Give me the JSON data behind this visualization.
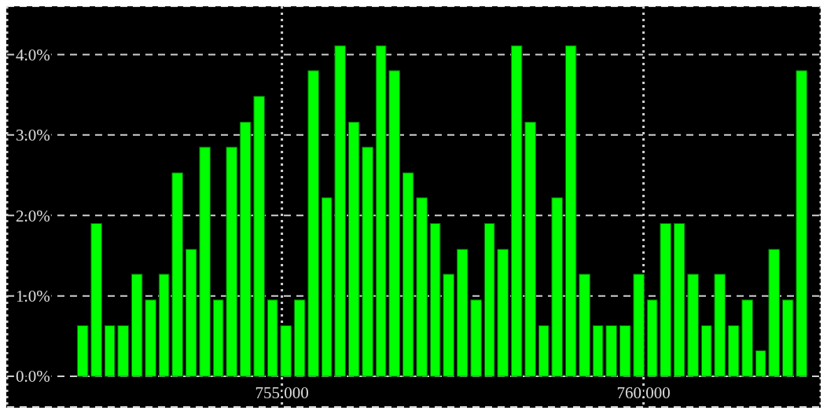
{
  "chart_data": {
    "type": "histogram",
    "bins": [
      752.15,
      752.34,
      752.53,
      752.71,
      752.9,
      753.09,
      753.28,
      753.46,
      753.65,
      753.84,
      754.03,
      754.21,
      754.4,
      754.59,
      754.78,
      754.96,
      755.15,
      755.34,
      755.53,
      755.71,
      755.9,
      756.09,
      756.28,
      756.46,
      756.65,
      756.84,
      757.03,
      757.21,
      757.4,
      757.59,
      757.78,
      757.96,
      758.15,
      758.34,
      758.53,
      758.71,
      758.9,
      759.09,
      759.28,
      759.46,
      759.65,
      759.84,
      760.03,
      760.21,
      760.4,
      760.59,
      760.78,
      760.96,
      761.15,
      761.34,
      761.53,
      761.71,
      761.9,
      762.09,
      762.28
    ],
    "values": [
      0.63,
      1.9,
      0.63,
      0.63,
      1.27,
      0.95,
      1.27,
      2.53,
      1.58,
      2.85,
      0.95,
      2.85,
      3.16,
      3.48,
      0.95,
      0.63,
      0.95,
      3.8,
      2.22,
      4.11,
      3.16,
      2.85,
      4.11,
      3.8,
      2.53,
      2.22,
      1.9,
      1.27,
      1.58,
      0.95,
      1.9,
      1.58,
      4.11,
      3.16,
      0.63,
      2.22,
      4.11,
      1.27,
      0.63,
      0.63,
      0.63,
      1.27,
      0.95,
      1.9,
      1.9,
      1.27,
      0.63,
      1.27,
      0.63,
      0.95,
      0.32,
      1.58,
      0.95,
      3.8
    ],
    "color": "#00ff00",
    "xlim": [
      751.2,
      762.45
    ],
    "xticks": [
      {
        "value": 755,
        "label": "755.000"
      },
      {
        "value": 760,
        "label": "760.000"
      }
    ],
    "ylim": [
      -0.38,
      4.6
    ],
    "yticks": [
      {
        "value": 0,
        "label": "0.0%"
      },
      {
        "value": 1,
        "label": "1.0%"
      },
      {
        "value": 2,
        "label": "2.0%"
      },
      {
        "value": 3,
        "label": "3.0%"
      },
      {
        "value": 4,
        "label": "4.0%"
      }
    ],
    "grid": true
  }
}
